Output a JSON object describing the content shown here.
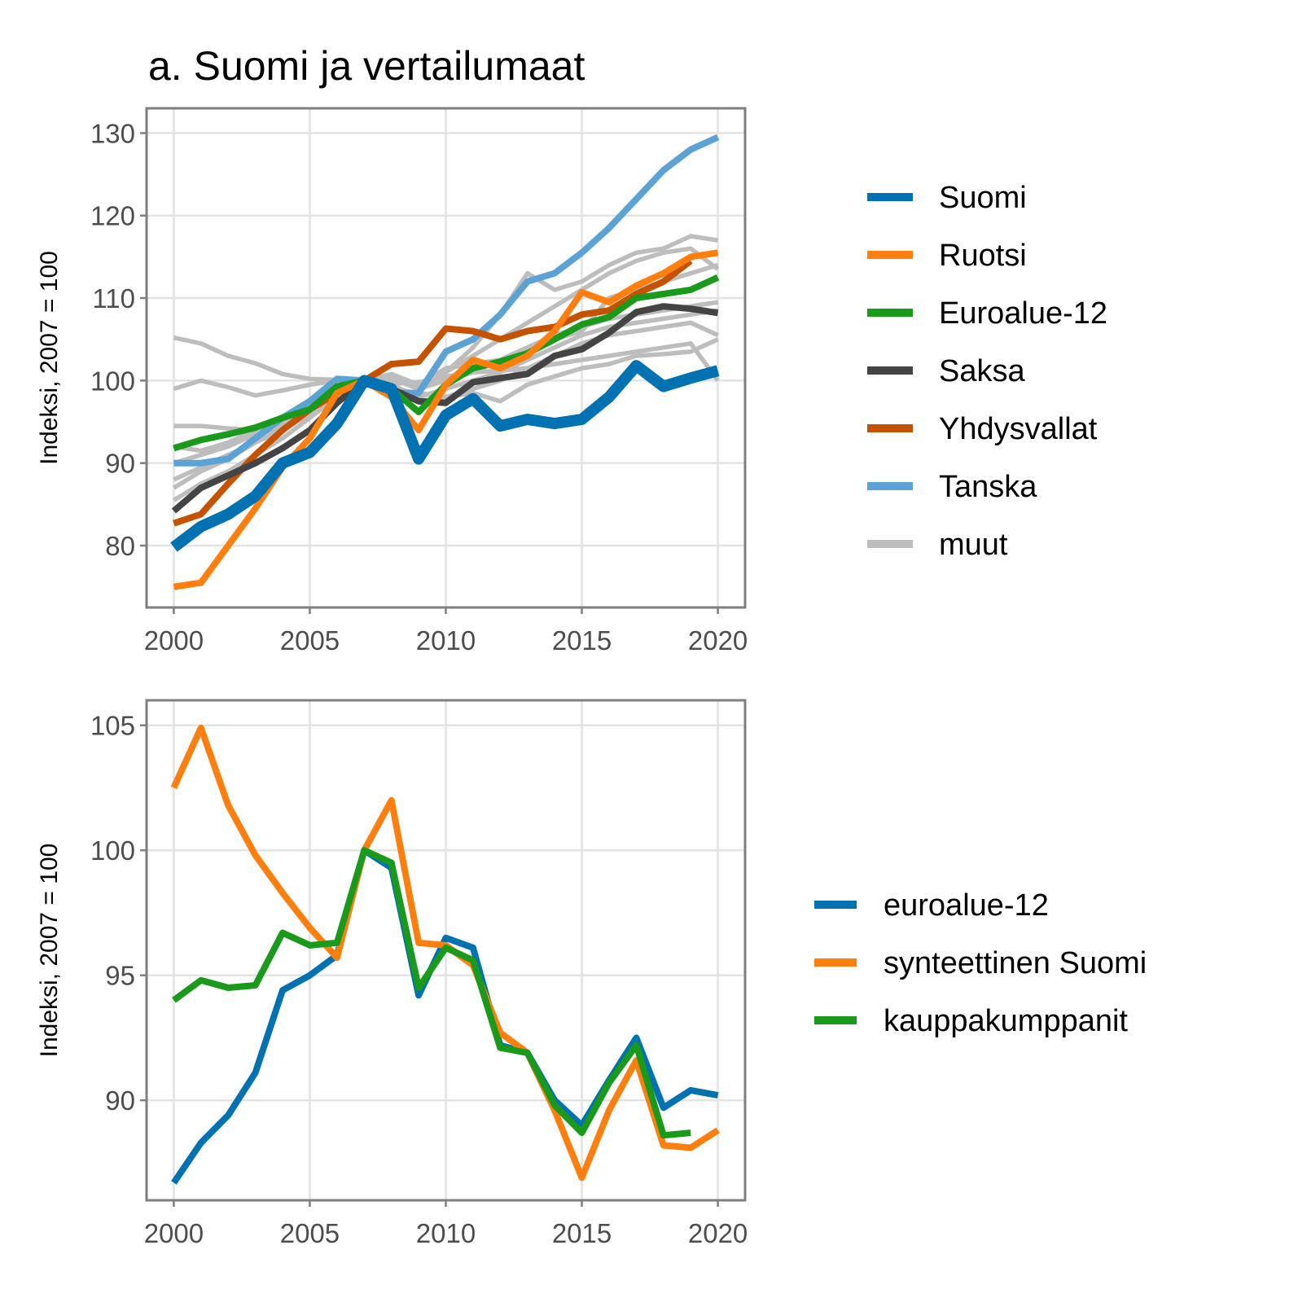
{
  "title": "a. Suomi ja vertailumaat",
  "colors": {
    "Suomi": "#0072B2",
    "Ruotsi": "#FF7F0E",
    "Euroalue-12": "#1A9A1A",
    "Saksa": "#444444",
    "Yhdysvallat": "#C45200",
    "Tanska": "#5BA3D4",
    "muut": "#BDBDBD"
  },
  "chart_data": [
    {
      "type": "line",
      "title": "a. Suomi ja vertailumaat",
      "xlabel": "",
      "ylabel": "Indeksi, 2007 = 100",
      "xlim": [
        1999,
        2021
      ],
      "ylim": [
        72.5,
        133
      ],
      "xticks": [
        2000,
        2005,
        2010,
        2015,
        2020
      ],
      "xtick_labels": [
        "2000",
        "2005",
        "2010",
        "2015",
        "2020"
      ],
      "yticks": [
        80,
        90,
        100,
        110,
        120,
        130
      ],
      "ytick_labels": [
        "80",
        "90",
        "100",
        "110",
        "120",
        "130"
      ],
      "grid": true,
      "legend": "right",
      "legend_entries": [
        "Suomi",
        "Ruotsi",
        "Euroalue-12",
        "Saksa",
        "Yhdysvallat",
        "Tanska",
        "muut"
      ],
      "x": [
        2000,
        2001,
        2002,
        2003,
        2004,
        2005,
        2006,
        2007,
        2008,
        2009,
        2010,
        2011,
        2012,
        2013,
        2014,
        2015,
        2016,
        2017,
        2018,
        2019,
        2020
      ],
      "series": [
        {
          "name": "muut",
          "values": [
            105.2,
            104.5,
            103.0,
            102.1,
            100.8,
            100.2,
            100.1,
            100,
            99.8,
            99.5,
            101.5,
            102.0,
            102.5,
            104.0,
            105.5,
            106.5,
            107.5,
            108.0,
            108.5,
            109.0,
            109.5
          ]
        },
        {
          "name": "muut",
          "values": [
            99.0,
            100.0,
            99.2,
            98.2,
            98.8,
            99.5,
            100.0,
            100,
            99.6,
            99.8,
            100.5,
            101.0,
            101.2,
            101.5,
            102.0,
            102.5,
            103.0,
            103.5,
            104.0,
            104.5,
            100.0
          ]
        },
        {
          "name": "muut",
          "values": [
            94.5,
            94.5,
            94.2,
            94.0,
            95.5,
            97.0,
            98.8,
            100,
            99.0,
            98.5,
            98.0,
            98.5,
            97.5,
            99.5,
            100.5,
            101.5,
            102.0,
            103.0,
            103.2,
            103.5,
            105.0
          ]
        },
        {
          "name": "muut",
          "values": [
            87.0,
            89.0,
            90.5,
            92.5,
            94.5,
            96.5,
            98.5,
            100,
            100.5,
            99.0,
            101.0,
            104.0,
            108.0,
            113.0,
            111.0,
            112.0,
            114.0,
            115.5,
            116.0,
            117.5,
            117.0
          ]
        },
        {
          "name": "muut",
          "values": [
            85.5,
            87.5,
            89.0,
            91.0,
            93.0,
            95.5,
            98.0,
            100,
            100.8,
            99.5,
            101.0,
            103.0,
            105.0,
            107.0,
            109.0,
            111.0,
            113.0,
            114.5,
            115.5,
            116.0,
            113.5
          ]
        },
        {
          "name": "muut",
          "values": [
            88.0,
            89.5,
            91.0,
            92.5,
            94.0,
            96.0,
            98.0,
            100,
            99.5,
            98.0,
            99.0,
            100.0,
            101.0,
            102.5,
            104.0,
            105.5,
            106.5,
            107.0,
            107.5,
            108.0,
            108.5
          ]
        },
        {
          "name": "muut",
          "values": [
            90.0,
            91.0,
            92.0,
            93.5,
            95.0,
            96.5,
            98.5,
            100,
            99.0,
            97.5,
            98.0,
            99.0,
            100.0,
            101.5,
            103.0,
            104.5,
            105.5,
            106.0,
            106.5,
            107.0,
            105.5
          ]
        },
        {
          "name": "muut",
          "values": [
            92.0,
            91.5,
            92.5,
            94.0,
            95.5,
            97.0,
            99.0,
            100,
            100.2,
            99.0,
            100.0,
            101.0,
            102.5,
            104.0,
            105.0,
            106.0,
            110.0,
            111.0,
            112.0,
            113.0,
            114.0
          ]
        },
        {
          "name": "Tanska",
          "values": [
            90.0,
            90.0,
            90.5,
            93.0,
            95.5,
            97.5,
            100.2,
            100,
            98.5,
            98.5,
            103.5,
            105.0,
            108.0,
            112.0,
            113.0,
            115.5,
            118.5,
            122.0,
            125.5,
            128.0,
            129.5
          ]
        },
        {
          "name": "Yhdysvallat",
          "values": [
            82.7,
            83.8,
            87.5,
            91.0,
            94.0,
            96.5,
            98.5,
            100,
            102.0,
            102.3,
            106.3,
            106.0,
            105.0,
            106.0,
            106.5,
            108.0,
            108.5,
            110.5,
            112.0,
            114.5,
            null
          ]
        },
        {
          "name": "Saksa",
          "values": [
            84.2,
            87.0,
            88.5,
            90.0,
            91.8,
            94.0,
            97.3,
            100,
            99.0,
            97.5,
            97.3,
            99.8,
            100.3,
            100.8,
            103.0,
            103.8,
            105.8,
            108.3,
            109.0,
            108.7,
            108.2
          ]
        },
        {
          "name": "Euroalue-12",
          "values": [
            91.8,
            92.8,
            93.5,
            94.3,
            95.5,
            96.5,
            99.3,
            100,
            99.0,
            96.2,
            99.5,
            101.5,
            102.3,
            103.3,
            105.0,
            106.8,
            107.7,
            110.0,
            110.5,
            111.0,
            112.5
          ]
        },
        {
          "name": "Ruotsi",
          "values": [
            75.0,
            75.5,
            80.0,
            84.5,
            89.5,
            93.0,
            98.5,
            100,
            98.0,
            94.0,
            99.5,
            102.5,
            101.5,
            103.0,
            106.0,
            110.7,
            109.5,
            111.5,
            113.0,
            115.0,
            115.5
          ]
        },
        {
          "name": "Suomi",
          "values": [
            79.8,
            82.3,
            83.8,
            86.0,
            90.0,
            91.3,
            94.8,
            100,
            99.0,
            90.5,
            95.8,
            97.8,
            94.5,
            95.3,
            94.8,
            95.3,
            98.0,
            101.8,
            99.3,
            100.3,
            101.2
          ]
        }
      ]
    },
    {
      "type": "line",
      "title": "",
      "xlabel": "",
      "ylabel": "Indeksi, 2007 = 100",
      "xlim": [
        1999,
        2021
      ],
      "ylim": [
        86,
        106
      ],
      "xticks": [
        2000,
        2005,
        2010,
        2015,
        2020
      ],
      "xtick_labels": [
        "2000",
        "2005",
        "2010",
        "2015",
        "2020"
      ],
      "yticks": [
        90,
        95,
        100,
        105
      ],
      "ytick_labels": [
        "90",
        "95",
        "100",
        "105"
      ],
      "grid": true,
      "legend": "right",
      "legend_entries": [
        "euroalue-12",
        "synteettinen Suomi",
        "kauppakumppanit"
      ],
      "x": [
        2000,
        2001,
        2002,
        2003,
        2004,
        2005,
        2006,
        2007,
        2008,
        2009,
        2010,
        2011,
        2012,
        2013,
        2014,
        2015,
        2016,
        2017,
        2018,
        2019,
        2020
      ],
      "series": [
        {
          "name": "euroalue-12",
          "values": [
            86.7,
            88.3,
            89.4,
            91.1,
            94.4,
            95.0,
            95.8,
            100.0,
            99.3,
            94.2,
            96.5,
            96.1,
            92.2,
            91.9,
            90.0,
            89.0,
            90.8,
            92.5,
            89.7,
            90.4,
            90.2
          ]
        },
        {
          "name": "synteettinen Suomi",
          "values": [
            102.5,
            104.9,
            101.8,
            99.8,
            98.3,
            96.9,
            95.7,
            100.0,
            102.0,
            96.3,
            96.2,
            95.4,
            92.7,
            91.9,
            89.6,
            86.9,
            89.6,
            91.6,
            88.2,
            88.1,
            88.8
          ]
        },
        {
          "name": "kauppakumppanit",
          "values": [
            94.0,
            94.8,
            94.5,
            94.6,
            96.7,
            96.2,
            96.3,
            100.0,
            99.5,
            94.5,
            96.1,
            95.6,
            92.1,
            91.9,
            89.8,
            88.7,
            90.7,
            92.2,
            88.6,
            88.7,
            null
          ]
        }
      ]
    }
  ]
}
